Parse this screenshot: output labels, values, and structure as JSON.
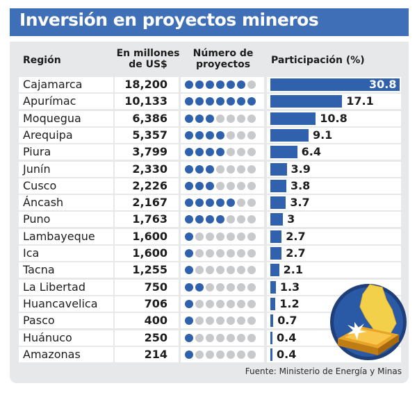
{
  "title": "Inversión en proyectos mineros",
  "headers": {
    "region": "Región",
    "amount_line1": "En millones",
    "amount_line2": "de US$",
    "projects_line1": "Número de",
    "projects_line2": "proyectos",
    "share": "Participación (%)"
  },
  "source": "Fuente: Ministerio de Energía y Minas",
  "colors": {
    "title_bg": "#3f6fb6",
    "bar": "#2f61ad",
    "dot_on": "#2f61ad",
    "dot_off": "#c8c9cb",
    "panel": "#e7e8ea"
  },
  "chart_data": {
    "type": "table",
    "columns": [
      "Región",
      "En millones de US$",
      "Número de proyectos",
      "Participación (%)"
    ],
    "rows": [
      {
        "region": "Cajamarca",
        "amount": "18,200",
        "projects": 6,
        "share": 30.8
      },
      {
        "region": "Apurímac",
        "amount": "10,133",
        "projects": 7,
        "share": 17.1
      },
      {
        "region": "Moquegua",
        "amount": "6,386",
        "projects": 3,
        "share": 10.8
      },
      {
        "region": "Arequipa",
        "amount": "5,357",
        "projects": 4,
        "share": 9.1
      },
      {
        "region": "Piura",
        "amount": "3,799",
        "projects": 4,
        "share": 6.4
      },
      {
        "region": "Junín",
        "amount": "2,330",
        "projects": 3,
        "share": 3.9
      },
      {
        "region": "Cusco",
        "amount": "2,226",
        "projects": 3,
        "share": 3.8
      },
      {
        "region": "Áncash",
        "amount": "2,167",
        "projects": 5,
        "share": 3.7
      },
      {
        "region": "Puno",
        "amount": "1,763",
        "projects": 4,
        "share": 3
      },
      {
        "region": "Lambayeque",
        "amount": "1,600",
        "projects": 1,
        "share": 2.7
      },
      {
        "region": "Ica",
        "amount": "1,600",
        "projects": 1,
        "share": 2.7
      },
      {
        "region": "Tacna",
        "amount": "1,255",
        "projects": 1,
        "share": 2.1
      },
      {
        "region": "La Libertad",
        "amount": "750",
        "projects": 2,
        "share": 1.3
      },
      {
        "region": "Huancavelica",
        "amount": "706",
        "projects": 1,
        "share": 1.2
      },
      {
        "region": "Pasco",
        "amount": "400",
        "projects": 1,
        "share": 0.7
      },
      {
        "region": "Huánuco",
        "amount": "250",
        "projects": 1,
        "share": 0.4
      },
      {
        "region": "Amazonas",
        "amount": "214",
        "projects": 1,
        "share": 0.4
      }
    ],
    "max_projects_dots": 7
  }
}
